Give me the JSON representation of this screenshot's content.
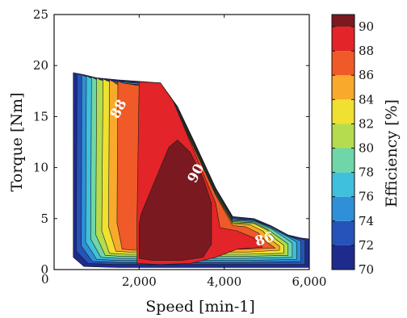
{
  "chart_data": {
    "type": "contour",
    "xlabel": "Speed [min-1]",
    "ylabel": "Torque [Nm]",
    "colorbar_label": "Efficiency [%]",
    "x_tick_labels": [
      "0",
      "2,000",
      "4,000",
      "6,000"
    ],
    "x_ticks": [
      0,
      2000,
      4000,
      6000
    ],
    "xlim": [
      0,
      6000
    ],
    "y_tick_labels": [
      "0",
      "5",
      "10",
      "15",
      "20",
      "25"
    ],
    "y_ticks": [
      0,
      5,
      10,
      15,
      20,
      25
    ],
    "ylim": [
      0,
      25
    ],
    "colorbar_tick_labels": [
      "70",
      "72",
      "74",
      "76",
      "78",
      "80",
      "82",
      "84",
      "86",
      "88",
      "90"
    ],
    "colorbar_ticks": [
      70,
      72,
      74,
      76,
      78,
      80,
      82,
      84,
      86,
      88,
      90
    ],
    "colorbar_range": [
      70,
      91
    ],
    "contour_labels": [
      {
        "text": "88",
        "x": 1530,
        "y": 15.7,
        "rotate": -62
      },
      {
        "text": "90",
        "x": 3350,
        "y": 9.4,
        "rotate": -62
      },
      {
        "text": "86",
        "x": 4950,
        "y": 2.9,
        "rotate": -18
      }
    ],
    "levels": [
      {
        "level": 70,
        "color": "#1e2a8c",
        "points": [
          [
            450,
            19.3
          ],
          [
            450,
            1.2
          ],
          [
            700,
            0.3
          ],
          [
            1500,
            0.2
          ],
          [
            3000,
            0.2
          ],
          [
            4500,
            0.2
          ],
          [
            6000,
            0.2
          ],
          [
            6000,
            3.0
          ],
          [
            5800,
            3.1
          ],
          [
            5500,
            3.4
          ],
          [
            5100,
            4.3
          ],
          [
            4700,
            5.0
          ],
          [
            4200,
            5.2
          ],
          [
            3800,
            8.0
          ],
          [
            3300,
            12.5
          ],
          [
            2900,
            16.0
          ],
          [
            2500,
            18.3
          ],
          [
            1500,
            18.6
          ],
          [
            1000,
            18.8
          ],
          [
            700,
            19.1
          ]
        ]
      },
      {
        "level": 72,
        "color": "#2653b8",
        "points": [
          [
            540,
            19.2
          ],
          [
            520,
            1.8
          ],
          [
            800,
            0.6
          ],
          [
            1500,
            0.5
          ],
          [
            3000,
            0.5
          ],
          [
            4500,
            0.5
          ],
          [
            5900,
            0.5
          ],
          [
            5900,
            2.9
          ],
          [
            5500,
            3.3
          ],
          [
            5100,
            4.2
          ],
          [
            4700,
            4.9
          ],
          [
            4200,
            5.1
          ],
          [
            3800,
            7.9
          ],
          [
            3300,
            12.4
          ],
          [
            2900,
            15.9
          ],
          [
            2500,
            18.2
          ],
          [
            1500,
            18.5
          ],
          [
            1000,
            18.7
          ],
          [
            700,
            19.0
          ]
        ]
      },
      {
        "level": 74,
        "color": "#2f8fd8",
        "points": [
          [
            650,
            19.1
          ],
          [
            640,
            2.3
          ],
          [
            900,
            0.8
          ],
          [
            1500,
            0.7
          ],
          [
            3000,
            0.7
          ],
          [
            4500,
            0.7
          ],
          [
            5800,
            0.8
          ],
          [
            5800,
            2.8
          ],
          [
            5500,
            3.3
          ],
          [
            5100,
            4.2
          ],
          [
            4700,
            4.8
          ],
          [
            4200,
            5.0
          ],
          [
            3800,
            7.8
          ],
          [
            3300,
            12.3
          ],
          [
            2900,
            15.8
          ],
          [
            2500,
            18.1
          ],
          [
            1500,
            18.4
          ],
          [
            1000,
            18.6
          ],
          [
            760,
            18.9
          ]
        ]
      },
      {
        "level": 76,
        "color": "#3fc0dc",
        "points": [
          [
            760,
            19.0
          ],
          [
            740,
            2.7
          ],
          [
            1000,
            1.0
          ],
          [
            1500,
            0.9
          ],
          [
            3000,
            0.9
          ],
          [
            4500,
            0.9
          ],
          [
            5700,
            1.0
          ],
          [
            5700,
            2.7
          ],
          [
            5500,
            3.2
          ],
          [
            5100,
            4.1
          ],
          [
            4700,
            4.8
          ],
          [
            4200,
            4.9
          ],
          [
            3800,
            7.8
          ],
          [
            3300,
            12.3
          ],
          [
            2900,
            15.8
          ],
          [
            2500,
            18.1
          ],
          [
            1500,
            18.4
          ],
          [
            1000,
            18.6
          ],
          [
            850,
            18.8
          ]
        ]
      },
      {
        "level": 78,
        "color": "#6ed6a8",
        "points": [
          [
            880,
            18.9
          ],
          [
            860,
            3.0
          ],
          [
            1100,
            1.2
          ],
          [
            1500,
            1.1
          ],
          [
            3000,
            1.1
          ],
          [
            4500,
            1.1
          ],
          [
            5600,
            1.2
          ],
          [
            5600,
            2.6
          ],
          [
            5400,
            3.2
          ],
          [
            5100,
            4.0
          ],
          [
            4700,
            4.7
          ],
          [
            4200,
            4.8
          ],
          [
            3800,
            7.7
          ],
          [
            3300,
            12.2
          ],
          [
            2900,
            15.7
          ],
          [
            2500,
            18.0
          ],
          [
            1500,
            18.3
          ],
          [
            1100,
            18.5
          ],
          [
            960,
            18.7
          ]
        ]
      },
      {
        "level": 80,
        "color": "#b4dc4e",
        "points": [
          [
            1000,
            18.8
          ],
          [
            980,
            3.4
          ],
          [
            1200,
            1.4
          ],
          [
            1600,
            1.3
          ],
          [
            3000,
            1.3
          ],
          [
            4500,
            1.3
          ],
          [
            5500,
            1.4
          ],
          [
            5500,
            2.5
          ],
          [
            5300,
            3.1
          ],
          [
            5000,
            4.0
          ],
          [
            4700,
            4.6
          ],
          [
            4200,
            4.7
          ],
          [
            3800,
            7.6
          ],
          [
            3300,
            12.1
          ],
          [
            2900,
            15.6
          ],
          [
            2500,
            17.9
          ],
          [
            1500,
            18.3
          ],
          [
            1200,
            18.5
          ],
          [
            1080,
            18.6
          ]
        ]
      },
      {
        "level": 82,
        "color": "#f0e030",
        "points": [
          [
            1150,
            18.7
          ],
          [
            1120,
            3.8
          ],
          [
            1300,
            1.6
          ],
          [
            1700,
            1.5
          ],
          [
            3000,
            1.5
          ],
          [
            4500,
            1.5
          ],
          [
            5400,
            1.6
          ],
          [
            5400,
            2.4
          ],
          [
            5200,
            3.0
          ],
          [
            5000,
            3.9
          ],
          [
            4700,
            4.5
          ],
          [
            4200,
            4.6
          ],
          [
            3800,
            7.5
          ],
          [
            3300,
            12.0
          ],
          [
            2900,
            15.5
          ],
          [
            2500,
            17.8
          ],
          [
            1500,
            18.2
          ],
          [
            1250,
            18.5
          ]
        ]
      },
      {
        "level": 84,
        "color": "#f9a92c",
        "points": [
          [
            1300,
            18.6
          ],
          [
            1280,
            4.2
          ],
          [
            1450,
            1.8
          ],
          [
            1800,
            1.7
          ],
          [
            3000,
            1.7
          ],
          [
            4500,
            1.7
          ],
          [
            5300,
            1.9
          ],
          [
            5300,
            2.3
          ],
          [
            5100,
            2.9
          ],
          [
            4900,
            3.8
          ],
          [
            4600,
            4.4
          ],
          [
            4200,
            4.5
          ],
          [
            3800,
            7.4
          ],
          [
            3300,
            11.9
          ],
          [
            2900,
            15.4
          ],
          [
            2500,
            17.8
          ],
          [
            1500,
            18.1
          ],
          [
            1400,
            18.4
          ]
        ]
      },
      {
        "level": 86,
        "color": "#ef5a28",
        "points": [
          [
            1500,
            18.5
          ],
          [
            1480,
            4.6
          ],
          [
            1600,
            2.0
          ],
          [
            1900,
            1.9
          ],
          [
            3000,
            1.9
          ],
          [
            4500,
            2.0
          ],
          [
            5200,
            2.1
          ],
          [
            5000,
            2.7
          ],
          [
            4800,
            3.6
          ],
          [
            4500,
            4.2
          ],
          [
            4200,
            4.3
          ],
          [
            3800,
            7.3
          ],
          [
            3300,
            11.8
          ],
          [
            2900,
            15.3
          ],
          [
            2500,
            17.7
          ],
          [
            1600,
            18.3
          ]
        ]
      },
      {
        "level": 88,
        "color": "#e32428",
        "points": [
          [
            2000,
            18.4
          ],
          [
            1950,
            5.0
          ],
          [
            1950,
            0.6
          ],
          [
            2500,
            0.5
          ],
          [
            3200,
            0.6
          ],
          [
            3800,
            1.2
          ],
          [
            4300,
            2.0
          ],
          [
            4900,
            2.2
          ],
          [
            4700,
            3.1
          ],
          [
            4300,
            3.8
          ],
          [
            3900,
            4.1
          ],
          [
            3800,
            6.5
          ],
          [
            3500,
            9.5
          ],
          [
            3100,
            13.5
          ],
          [
            2800,
            16.5
          ],
          [
            2500,
            18.3
          ]
        ]
      },
      {
        "level": 90,
        "color": "#7a1a20",
        "points": [
          [
            2000,
            4.5
          ],
          [
            2000,
            1.1
          ],
          [
            2300,
            0.9
          ],
          [
            3000,
            0.9
          ],
          [
            3500,
            1.2
          ],
          [
            3700,
            2.5
          ],
          [
            3700,
            6.5
          ],
          [
            3500,
            9.0
          ],
          [
            3200,
            11.5
          ],
          [
            2900,
            12.7
          ],
          [
            2700,
            12.0
          ],
          [
            2450,
            9.5
          ],
          [
            2200,
            7.0
          ],
          [
            2050,
            5.5
          ]
        ]
      }
    ],
    "colorbar_colors": [
      "#1e2a8c",
      "#2653b8",
      "#2f8fd8",
      "#3fc0dc",
      "#6ed6a8",
      "#b4dc4e",
      "#f0e030",
      "#f9a92c",
      "#ef5a28",
      "#e32428",
      "#7a1a20"
    ]
  }
}
